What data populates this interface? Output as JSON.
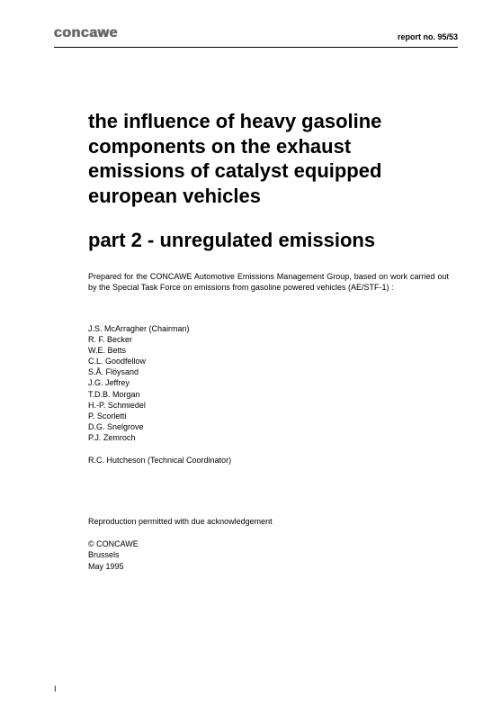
{
  "header": {
    "logo": "concawe",
    "report_no": "report no. 95/53"
  },
  "title": "the influence of heavy gasoline components on the exhaust emissions of catalyst equipped european vehicles",
  "subtitle": "part 2 - unregulated emissions",
  "prepared": "Prepared for the CONCAWE Automotive Emissions Management Group, based on work carried out by the Special Task Force on emissions from gasoline powered vehicles (AE/STF-1) :",
  "authors": [
    "J.S. McArragher (Chairman)",
    "R. F. Becker",
    "W.E. Betts",
    "C.L. Goodfellow",
    "S.Å. Flöysand",
    "J.G. Jeffrey",
    "T.D.B. Morgan",
    "H.-P. Schmiedel",
    "P. Scorletti",
    "D.G. Snelgrove",
    "P.J. Zemroch"
  ],
  "coordinator": "R.C. Hutcheson (Technical Coordinator)",
  "reproduction": "Reproduction permitted with due acknowledgement",
  "copyright": {
    "org": "© CONCAWE",
    "city": "Brussels",
    "date": "May 1995"
  },
  "page_number": "I"
}
